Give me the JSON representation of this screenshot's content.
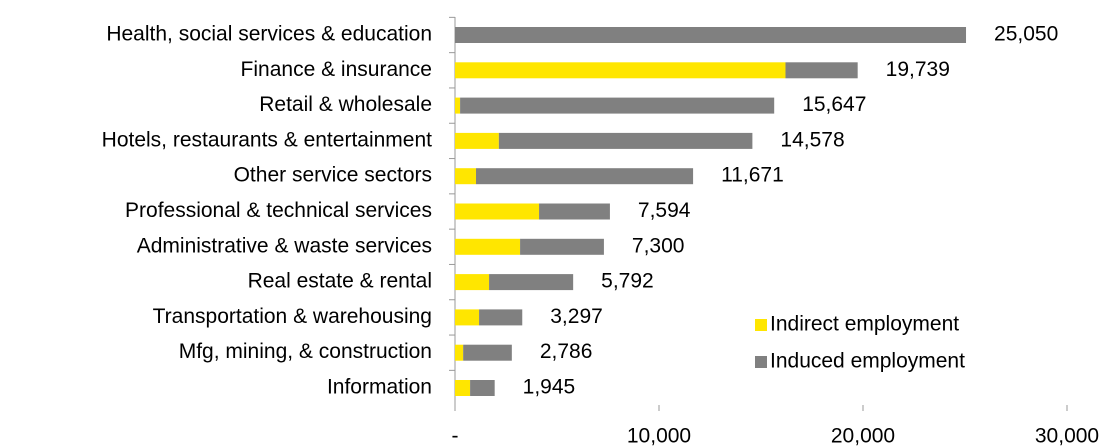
{
  "chart_data": {
    "type": "stacked-bar-horizontal",
    "categories": [
      "Health, social services & education",
      "Finance & insurance",
      "Retail & wholesale",
      "Hotels, restaurants & entertainment",
      "Other service sectors",
      "Professional & technical services",
      "Administrative & waste services",
      "Real estate & rental",
      "Transportation & warehousing",
      "Mfg, mining, & construction",
      "Information"
    ],
    "series": [
      {
        "name": "Indirect employment",
        "color": "#ffe600",
        "values": [
          0,
          16200,
          250,
          2150,
          1030,
          4120,
          3190,
          1670,
          1180,
          400,
          740
        ]
      },
      {
        "name": "Induced employment",
        "color": "#808080",
        "values": [
          25050,
          3539,
          15397,
          12428,
          10641,
          3474,
          4110,
          4122,
          2117,
          2386,
          1205
        ]
      }
    ],
    "totals": [
      25050,
      19739,
      15647,
      14578,
      11671,
      7594,
      7300,
      5792,
      3297,
      2786,
      1945
    ],
    "value_labels": [
      "25,050",
      "19,739",
      "15,647",
      "14,578",
      "11,671",
      "7,594",
      "7,300",
      "5,792",
      "3,297",
      "2,786",
      "1,945"
    ],
    "xlim": [
      0,
      30000
    ],
    "xticks": [
      {
        "value": 0,
        "label": "-"
      },
      {
        "value": 10000,
        "label": "10,000"
      },
      {
        "value": 20000,
        "label": "20,000"
      },
      {
        "value": 30000,
        "label": "30,000"
      }
    ],
    "legend": "lower right"
  }
}
